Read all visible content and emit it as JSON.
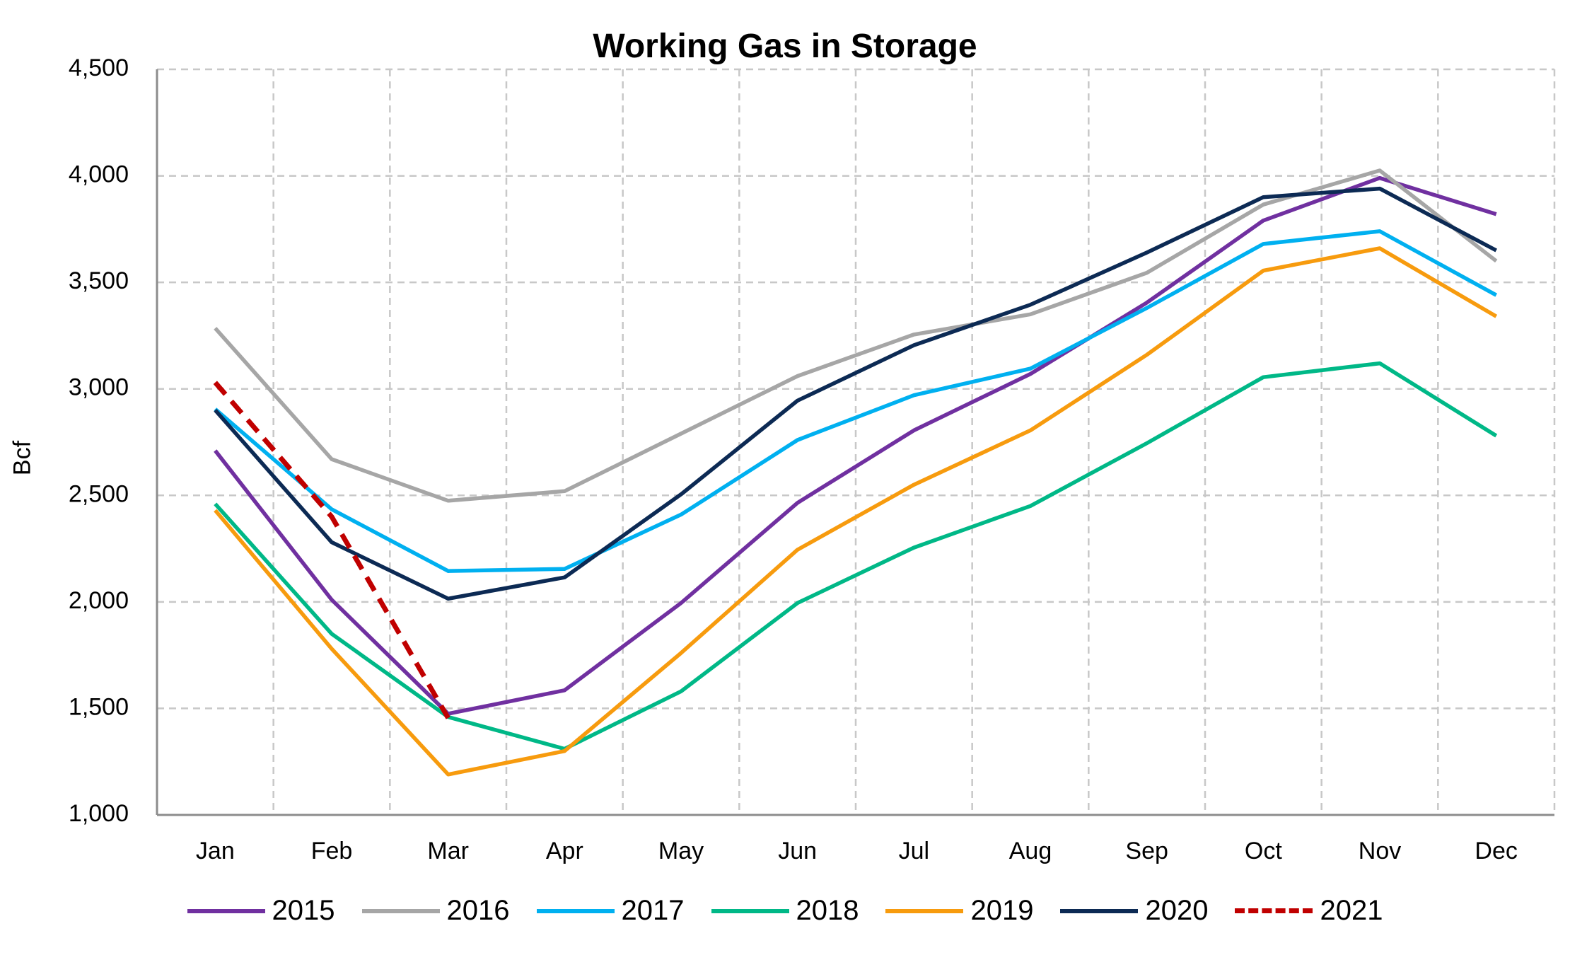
{
  "chart_data": {
    "type": "line",
    "title": "Working Gas in Storage",
    "xlabel": "",
    "ylabel": "Bcf",
    "categories": [
      "Jan",
      "Feb",
      "Mar",
      "Apr",
      "May",
      "Jun",
      "Jul",
      "Aug",
      "Sep",
      "Oct",
      "Nov",
      "Dec"
    ],
    "ylim": [
      1000,
      4500
    ],
    "yticks": [
      1000,
      1500,
      2000,
      2500,
      3000,
      3500,
      4000,
      4500
    ],
    "ytick_labels": [
      "1,000",
      "1,500",
      "2,000",
      "2,500",
      "3,000",
      "3,500",
      "4,000",
      "4,500"
    ],
    "grid": true,
    "legend_position": "bottom",
    "series": [
      {
        "name": "2015",
        "color": "#7030A0",
        "dashed": false,
        "values": [
          2710,
          2010,
          1475,
          1585,
          1995,
          2465,
          2805,
          3070,
          3405,
          3790,
          3990,
          3820
        ]
      },
      {
        "name": "2016",
        "color": "#A6A6A6",
        "dashed": false,
        "values": [
          3285,
          2670,
          2475,
          2520,
          2790,
          3060,
          3255,
          3350,
          3545,
          3865,
          4025,
          3600
        ]
      },
      {
        "name": "2017",
        "color": "#00B0F0",
        "dashed": false,
        "values": [
          2905,
          2435,
          2145,
          2155,
          2410,
          2760,
          2970,
          3095,
          3380,
          3680,
          3740,
          3440
        ]
      },
      {
        "name": "2018",
        "color": "#00B887",
        "dashed": false,
        "values": [
          2460,
          1850,
          1460,
          1310,
          1580,
          1995,
          2255,
          2450,
          2745,
          3055,
          3120,
          2780
        ]
      },
      {
        "name": "2019",
        "color": "#F79B0E",
        "dashed": false,
        "values": [
          2430,
          1780,
          1190,
          1300,
          1760,
          2245,
          2550,
          2805,
          3160,
          3555,
          3660,
          3340
        ]
      },
      {
        "name": "2020",
        "color": "#0C2A54",
        "dashed": false,
        "values": [
          2900,
          2280,
          2015,
          2115,
          2505,
          2945,
          3205,
          3395,
          3640,
          3900,
          3940,
          3650
        ]
      },
      {
        "name": "2021",
        "color": "#C00000",
        "dashed": true,
        "values": [
          3030,
          2400,
          1455,
          null,
          null,
          null,
          null,
          null,
          null,
          null,
          null,
          null
        ]
      }
    ]
  }
}
